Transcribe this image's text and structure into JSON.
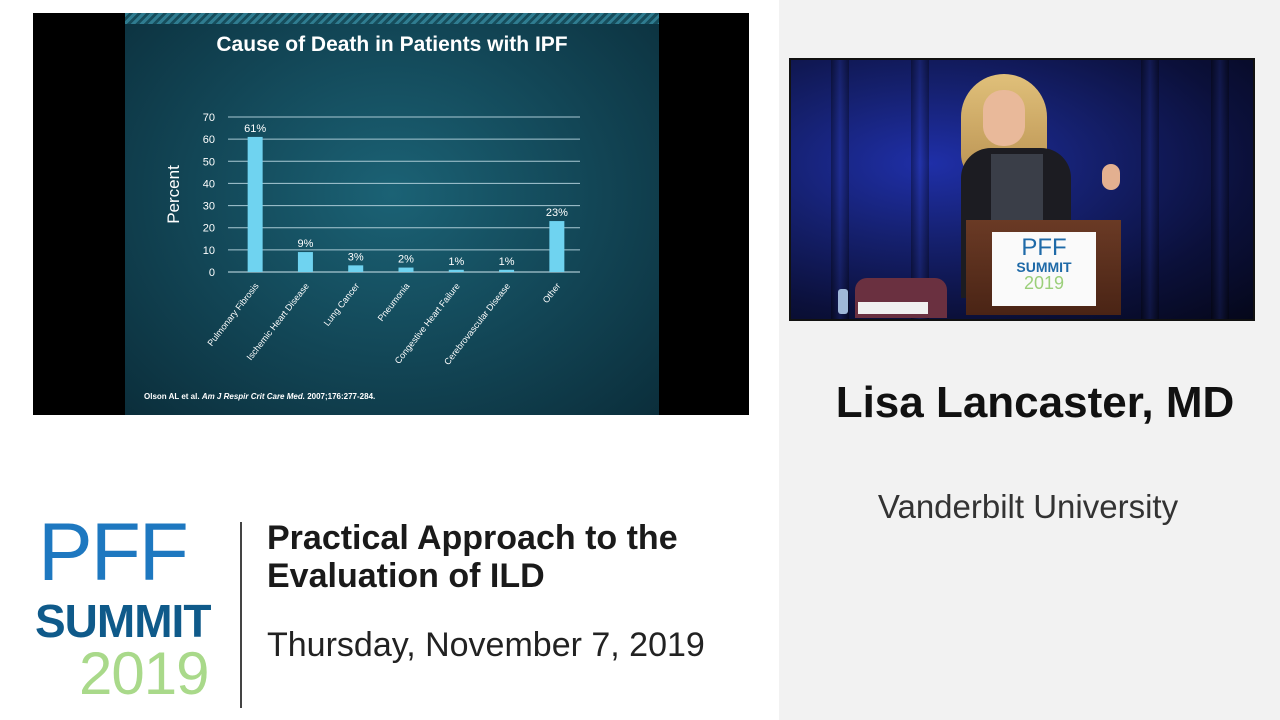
{
  "slide": {
    "citation_authors": "Olson AL et al.",
    "citation_journal": "Am J Respir Crit Care Med.",
    "citation_ref": "2007;176:277-284."
  },
  "chart_data": {
    "type": "bar",
    "title": "Cause of Death in Patients with IPF",
    "ylabel": "Percent",
    "xlabel": "",
    "ylim": [
      0,
      70
    ],
    "yticks": [
      0,
      10,
      20,
      30,
      40,
      50,
      60,
      70
    ],
    "categories": [
      "Pulmonary Fibrosis",
      "Ischemic Heart Disease",
      "Lung Cancer",
      "Pneumonia",
      "Congestive Heart Failure",
      "Cerebrovascular Disease",
      "Other"
    ],
    "values": [
      61,
      9,
      3,
      2,
      1,
      1,
      23
    ],
    "data_labels": [
      "61%",
      "9%",
      "3%",
      "2%",
      "1%",
      "1%",
      "23%"
    ],
    "bar_color": "#6fd3f0",
    "grid": true
  },
  "video": {
    "podium_logo_line1": "PFF",
    "podium_logo_line2": "SUMMIT",
    "podium_logo_line3": "2019"
  },
  "speaker": {
    "name": "Lisa Lancaster, MD",
    "affiliation": "Vanderbilt University"
  },
  "event": {
    "logo_line1": "PFF",
    "logo_line2": "SUMMIT",
    "logo_line3": "2019",
    "talk_title": "Practical Approach to the Evaluation of ILD",
    "date": "Thursday, November 7, 2019"
  },
  "colors": {
    "logo_blue": "#1e78c0",
    "logo_dark_blue": "#0f5a8a",
    "logo_green": "#a9d98a"
  }
}
